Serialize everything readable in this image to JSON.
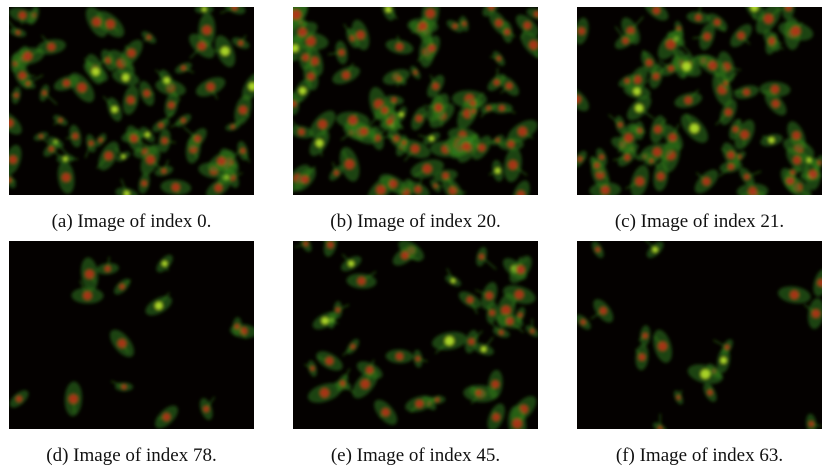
{
  "figures": [
    {
      "caption": "(a) Image of index 0."
    },
    {
      "caption": "(b) Image of index 20."
    },
    {
      "caption": "(c) Image of index 21."
    },
    {
      "caption": "(d) Image of index 78."
    },
    {
      "caption": "(e) Image of index 45."
    },
    {
      "caption": "(f) Image of index 63."
    }
  ]
}
